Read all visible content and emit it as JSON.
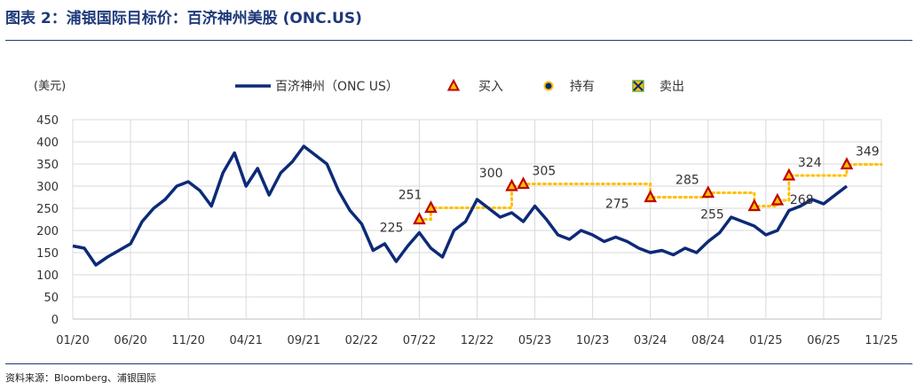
{
  "figure": {
    "title": "图表 2：浦银国际目标价：百济神州美股 (ONC.US)",
    "source": "资料来源：Bloomberg、浦银国际"
  },
  "chart_data": {
    "type": "line",
    "unit_label": "(美元)",
    "ylim": [
      0,
      450
    ],
    "yticks": [
      0,
      50,
      100,
      150,
      200,
      250,
      300,
      350,
      400,
      450
    ],
    "xlim": [
      "2020-01",
      "2025-11"
    ],
    "xticks": [
      "01/20",
      "06/20",
      "11/20",
      "04/21",
      "09/21",
      "02/22",
      "07/22",
      "12/22",
      "05/23",
      "10/23",
      "03/24",
      "08/24",
      "01/25",
      "06/25",
      "11/25"
    ],
    "grid": true,
    "legend": {
      "position": "top",
      "items": [
        {
          "label": "百济神州（ONC US）",
          "kind": "line"
        },
        {
          "label": "买入",
          "kind": "triangle"
        },
        {
          "label": "持有",
          "kind": "circle"
        },
        {
          "label": "卖出",
          "kind": "cross"
        }
      ]
    },
    "colors": {
      "price_line": "#0d2a78",
      "target_line": "#ffc000",
      "buy_fill": "#ffc000",
      "buy_edge": "#c00000",
      "hold_fill": "#0d2a78",
      "sell_fill": "#70ad47",
      "grid": "#d9d9d9"
    },
    "series": [
      {
        "name": "百济神州（ONC US）",
        "x": [
          "2020-01",
          "2020-02",
          "2020-03",
          "2020-04",
          "2020-05",
          "2020-06",
          "2020-07",
          "2020-08",
          "2020-09",
          "2020-10",
          "2020-11",
          "2020-12",
          "2021-01",
          "2021-02",
          "2021-03",
          "2021-04",
          "2021-05",
          "2021-06",
          "2021-07",
          "2021-08",
          "2021-09",
          "2021-10",
          "2021-11",
          "2021-12",
          "2022-01",
          "2022-02",
          "2022-03",
          "2022-04",
          "2022-05",
          "2022-06",
          "2022-07",
          "2022-08",
          "2022-09",
          "2022-10",
          "2022-11",
          "2022-12",
          "2023-01",
          "2023-02",
          "2023-03",
          "2023-04",
          "2023-05",
          "2023-06",
          "2023-07",
          "2023-08",
          "2023-09",
          "2023-10",
          "2023-11",
          "2023-12",
          "2024-01",
          "2024-02",
          "2024-03",
          "2024-04",
          "2024-05",
          "2024-06",
          "2024-07",
          "2024-08",
          "2024-09",
          "2024-10",
          "2024-11",
          "2024-12",
          "2025-01",
          "2025-02",
          "2025-03",
          "2025-04",
          "2025-05",
          "2025-06",
          "2025-07",
          "2025-08"
        ],
        "values": [
          165,
          160,
          122,
          140,
          155,
          170,
          220,
          250,
          270,
          300,
          310,
          290,
          255,
          330,
          375,
          300,
          340,
          280,
          330,
          355,
          390,
          370,
          350,
          290,
          245,
          215,
          155,
          170,
          130,
          165,
          195,
          160,
          140,
          200,
          220,
          270,
          250,
          230,
          240,
          220,
          255,
          225,
          190,
          180,
          200,
          190,
          175,
          185,
          175,
          160,
          150,
          155,
          145,
          160,
          150,
          175,
          195,
          230,
          220,
          210,
          190,
          200,
          245,
          255,
          270,
          260,
          280,
          300
        ]
      }
    ],
    "target_prices": [
      {
        "date": "2022-07",
        "value": 225,
        "rating": "买入"
      },
      {
        "date": "2022-08",
        "value": 251,
        "rating": "买入"
      },
      {
        "date": "2023-03",
        "value": 300,
        "rating": "买入"
      },
      {
        "date": "2023-04",
        "value": 305,
        "rating": "买入"
      },
      {
        "date": "2024-03",
        "value": 275,
        "rating": "买入"
      },
      {
        "date": "2024-08",
        "value": 285,
        "rating": "买入"
      },
      {
        "date": "2024-12",
        "value": 255,
        "rating": "买入"
      },
      {
        "date": "2025-02",
        "value": 268,
        "rating": "买入"
      },
      {
        "date": "2025-03",
        "value": 324,
        "rating": "买入"
      },
      {
        "date": "2025-08",
        "value": 349,
        "rating": "买入"
      }
    ],
    "target_line_end": "2025-11"
  }
}
